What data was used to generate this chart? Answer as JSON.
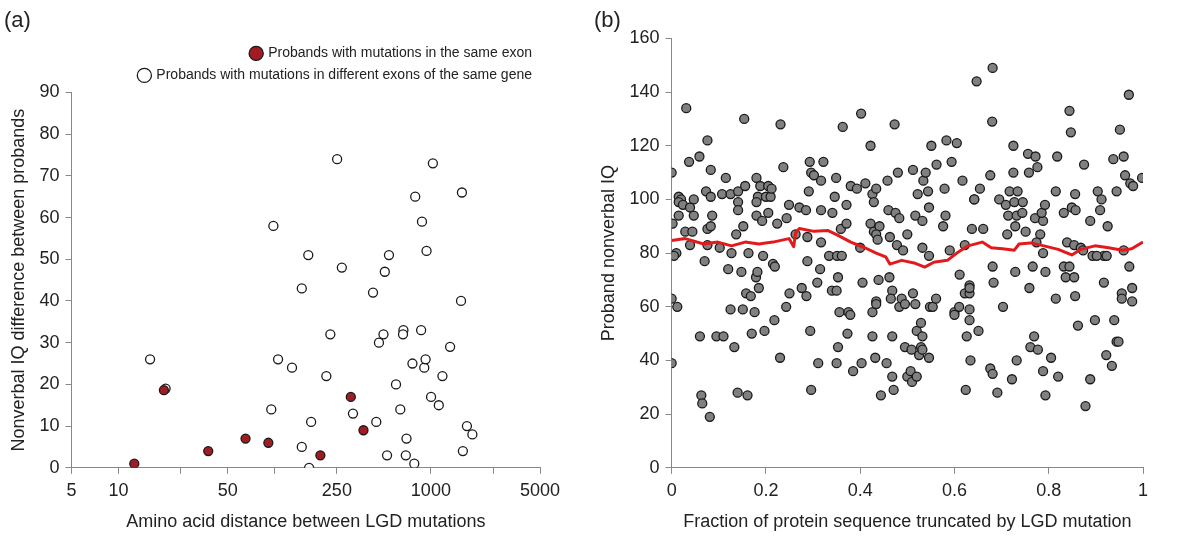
{
  "chart_data": [
    {
      "type": "scatter",
      "title": "(a)",
      "xlabel": "Amino acid distance between LGD mutations",
      "ylabel": "Nonverbal IQ difference between probands",
      "log": "x",
      "xlim": [
        5,
        5000
      ],
      "xticks": [
        5,
        10,
        {
          "value": 25,
          "label": null
        },
        50,
        {
          "value": 100,
          "label": null
        },
        250,
        1000,
        {
          "value": 2500,
          "label": null
        },
        5000
      ],
      "ylim": [
        0,
        90
      ],
      "yticks": [
        0,
        10,
        20,
        30,
        40,
        50,
        60,
        70,
        80,
        90
      ],
      "legend": "top right",
      "marker": "circle",
      "series": [
        {
          "name": "Probands with mutations in the same exon",
          "color": "#a01c22",
          "x": [
            12.6,
            19.5,
            37.5,
            65,
            91,
            196,
            307,
            370
          ],
          "values": [
            1,
            18.6,
            4,
            7,
            6,
            3,
            17,
            9
          ]
        },
        {
          "name": "Probands with mutations in different exons of the same gene",
          "color": "#ffffff",
          "x": [
            15.9,
            20,
            98,
            95,
            105,
            129,
            164,
            149,
            149,
            171,
            166,
            214,
            227,
            251,
            269,
            317,
            426,
            447,
            465,
            497,
            507,
            539,
            524,
            598,
            637,
            667,
            663,
            698,
            691,
            762,
            783,
            794,
            866,
            877,
            907,
            925,
            938,
            1003,
            1030,
            1124,
            1186,
            1328,
            1560,
            1581,
            1603,
            1702,
            1844
          ],
          "values": [
            26,
            19,
            58,
            14,
            26,
            24,
            51,
            43,
            5,
            11,
            0,
            22,
            32,
            74,
            48,
            13,
            42,
            11,
            30,
            32,
            47,
            51,
            3,
            20,
            14,
            33,
            32,
            7,
            3,
            25,
            1,
            65,
            33,
            59,
            24,
            26,
            52,
            17,
            73,
            15,
            22,
            29,
            40,
            66,
            4,
            10,
            8
          ]
        }
      ]
    },
    {
      "type": "scatter",
      "title": "(b)",
      "xlabel": "Fraction of protein sequence truncated by LGD mutation",
      "ylabel": "Proband nonverbal IQ",
      "xlim": [
        0,
        1
      ],
      "xticks": [
        0,
        0.2,
        0.4,
        0.6,
        0.8,
        1
      ],
      "ylim": [
        0,
        160
      ],
      "yticks": [
        0,
        20,
        40,
        60,
        80,
        100,
        120,
        140,
        160
      ],
      "marker": "circle",
      "series": [
        {
          "color": "#808080",
          "x": [
            0,
            0.031,
            0.002,
            0.015,
            0.02,
            0.015,
            0.024,
            0.037,
            0.059,
            0.076,
            0.047,
            0.039,
            0.015,
            0.047,
            0.073,
            0.083,
            0.086,
            0.083,
            0.076,
            0.083,
            0.107,
            0.125,
            0.115,
            0.154,
            0.141,
            0.156,
            0.141,
            0.141,
            0.152,
            0.137,
            0.029,
            0.01,
            0.005,
            0.039,
            0.044,
            0.076,
            0.102,
            0.127,
            0.18,
            0.188,
            0.205,
            0.183,
            0.2,
            0.21,
            0.212,
            0.18,
            0.18,
            0.192,
            0.205,
            0.163,
            0.194,
            0.215,
            0.231,
            0.237,
            0.224,
            0.244,
            0.249,
            0.271,
            0.285,
            0.291,
            0.293,
            0.296,
            0.302,
            0.317,
            0.322,
            0.317,
            0.288,
            0.263,
            0.288,
            0.317,
            0.334,
            0.351,
            0.361,
            0.341,
            0.346,
            0.349,
            0.359,
            0.371,
            0.363,
            0.371,
            0.38,
            0.393,
            0.402,
            0.422,
            0.411,
            0.426,
            0.429,
            0.434,
            0.422,
            0.429,
            0.441,
            0.434,
            0.437,
            0.4,
            0.458,
            0.46,
            0.473,
            0.475,
            0.48,
            0.483,
            0.463,
            0.478,
            0.491,
            0.5,
            0.512,
            0.517,
            0.522,
            0.532,
            0.534,
            0.539,
            0.544,
            0.546,
            0.551,
            0.562,
            0.576,
            0.579,
            0.583,
            0.581,
            0.594,
            0.605,
            0.617,
            0.532,
            0.546,
            0.59,
            0.622,
            0.647,
            0.642,
            0.642,
            0.637,
            0.661,
            0.654,
            0.681,
            0.68,
            0.676,
            0.695,
            0.709,
            0.717,
            0.734,
            0.727,
            0.725,
            0.725,
            0.714,
            0.732,
            0.744,
            0.729,
            0.712,
            0.751,
            0.745,
            0.756,
            0.772,
            0.776,
            0.758,
            0.771,
            0.788,
            0.785,
            0.792,
            0.782,
            0.774,
            0.788,
            0.815,
            0.818,
            0.832,
            0.844,
            0.847,
            0.849,
            0.857,
            0.856,
            0.875,
            0.888,
            0.904,
            0.912,
            0.909,
            0.925,
            0.937,
            0.944,
            0.951,
            0.959,
            0.962,
            0.97,
            0.973,
            0.979,
            0.998,
            0.839,
            0.854,
            0.868,
            0.893,
            0.917,
            0.959,
            0.923,
            0.873,
            0.902,
            0,
            0.012,
            0,
            0.06,
            0.063,
            0.065,
            0.081,
            0.07,
            0.095,
            0.11,
            0.12,
            0.125,
            0.133,
            0.14,
            0.148,
            0.151,
            0.161,
            0.158,
            0.168,
            0.17,
            0.176,
            0.179,
            0.182,
            0.185,
            0.197,
            0.218,
            0.219,
            0.23,
            0.243,
            0.25,
            0.276,
            0.286,
            0.294,
            0.296,
            0.309,
            0.311,
            0.315,
            0.34,
            0.35,
            0.35,
            0.353,
            0.356,
            0.353,
            0.373,
            0.375,
            0.379,
            0.385,
            0.403,
            0.405,
            0.426,
            0.426,
            0.432,
            0.434,
            0.434,
            0.439,
            0.444,
            0.456,
            0.462,
            0.468,
            0.468,
            0.468,
            0.465,
            0.471,
            0.483,
            0.488,
            0.495,
            0.495,
            0.5,
            0.507,
            0.51,
            0.509,
            0.512,
            0.517,
            0.52,
            0.52,
            0.525,
            0.529,
            0.529,
            0.532,
            0.532,
            0.546,
            0.548,
            0.554,
            0.561,
            0.6,
            0.6,
            0.61,
            0.611,
            0.624,
            0.626,
            0.622,
            0.632,
            0.632,
            0.632,
            0.632,
            0.634,
            0.632,
            0.651,
            0.681,
            0.683,
            0.676,
            0.681,
            0.691,
            0.703,
            0.722,
            0.729,
            0.732,
            0.759,
            0.761,
            0.766,
            0.769,
            0.777,
            0.788,
            0.793,
            0.793,
            0.805,
            0.815,
            0.82,
            0.832,
            0.836,
            0.854,
            0.844,
            0.856,
            0.862,
            0.878,
            0.888,
            0.898,
            0.917,
            0.922,
            0.934,
            0.939,
            0.944,
            0.948,
            0.955,
            0.955,
            0.971,
            0.977,
            0.977
          ],
          "values": [
            110,
            134,
            91,
            101,
            100,
            99,
            98,
            114,
            116,
            122,
            100,
            97,
            94,
            94,
            103,
            101,
            94,
            111,
            89,
            90,
            102,
            102,
            108,
            130,
            103,
            105,
            99,
            96,
            90,
            87,
            88,
            80,
            79,
            83,
            88,
            83,
            82,
            80,
            108,
            105,
            105,
            101,
            101,
            101,
            104,
            99,
            94,
            92,
            95,
            80,
            79,
            76,
            128,
            112,
            91,
            93,
            98,
            97,
            96,
            103,
            114,
            110,
            109,
            107,
            114,
            96,
            86,
            87,
            77,
            84,
            79,
            79,
            79,
            95,
            101,
            108,
            89,
            91,
            127,
            98,
            105,
            104,
            132,
            120,
            106,
            102,
            99,
            104,
            91,
            88,
            90,
            87,
            85,
            82,
            107,
            96,
            128,
            95,
            110,
            93,
            86,
            83,
            81,
            87,
            111,
            94,
            102,
            92,
            107,
            110,
            103,
            97,
            120,
            113,
            90,
            104,
            122,
            94,
            114,
            121,
            107,
            82,
            79,
            81,
            83,
            144,
            100,
            100,
            89,
            89,
            104,
            149,
            129,
            109,
            100,
            98,
            103,
            103,
            99,
            120,
            110,
            94,
            94,
            95,
            90,
            87,
            88,
            99,
            117,
            116,
            112,
            110,
            93,
            92,
            95,
            98,
            87,
            84,
            80,
            103,
            116,
            95,
            133,
            125,
            97,
            96,
            102,
            113,
            92,
            103,
            100,
            96,
            90,
            115,
            103,
            126,
            116,
            109,
            139,
            106,
            105,
            108,
            84,
            83,
            82,
            79,
            79,
            81,
            79,
            81,
            79,
            63,
            60,
            39,
            49,
            27,
            24,
            19,
            77,
            49,
            49,
            74,
            59,
            45,
            28,
            73,
            59,
            27,
            65,
            64,
            50,
            58,
            71,
            73,
            67,
            51,
            55,
            75,
            41,
            60,
            65,
            67,
            64,
            51,
            29,
            69,
            39,
            74,
            66,
            66,
            39,
            45,
            58,
            71,
            50,
            58,
            57,
            36,
            39,
            69,
            58,
            49,
            41,
            62,
            61,
            70,
            27,
            39,
            71,
            34,
            49,
            66,
            63,
            29,
            60,
            63,
            45,
            61,
            34,
            36,
            32,
            44,
            65,
            61,
            51,
            34,
            42,
            45,
            54,
            49,
            44,
            41,
            60,
            60,
            63,
            58,
            57,
            60,
            72,
            29,
            49,
            65,
            65,
            68,
            59,
            55,
            40,
            67,
            51,
            75,
            69,
            37,
            35,
            28,
            60,
            33,
            73,
            40,
            67,
            45,
            75,
            49,
            44,
            36,
            73,
            27,
            41,
            63,
            34,
            75,
            71,
            71,
            75,
            64,
            53,
            23,
            33,
            55,
            69,
            42,
            38,
            55,
            47,
            47,
            65,
            63,
            75,
            67,
            62
          ]
        },
        {
          "type": "line",
          "marker": "none",
          "color": "#e31a1c",
          "x": [
            0,
            0.029,
            0.068,
            0.098,
            0.127,
            0.156,
            0.185,
            0.215,
            0.249,
            0.259,
            0.263,
            0.271,
            0.302,
            0.332,
            0.351,
            0.38,
            0.41,
            0.434,
            0.454,
            0.463,
            0.488,
            0.517,
            0.537,
            0.556,
            0.585,
            0.605,
            0.629,
            0.659,
            0.678,
            0.702,
            0.727,
            0.737,
            0.761,
            0.79,
            0.82,
            0.849,
            0.868,
            0.898,
            0.927,
            0.956,
            0.976,
            1
          ],
          "values": [
            84.7,
            85.4,
            83.4,
            84.1,
            82.7,
            84.1,
            83.4,
            84.1,
            85.4,
            82.4,
            87.5,
            89.2,
            88.1,
            88.4,
            86.8,
            84.1,
            82,
            80,
            78.6,
            75.9,
            77.3,
            76.2,
            74.8,
            76.6,
            77.3,
            80,
            82.7,
            84.1,
            82,
            81.6,
            81.1,
            83.4,
            83.8,
            82.7,
            81.4,
            79.3,
            81.4,
            82.7,
            82,
            81.1,
            81.6,
            84.1
          ]
        }
      ]
    }
  ]
}
